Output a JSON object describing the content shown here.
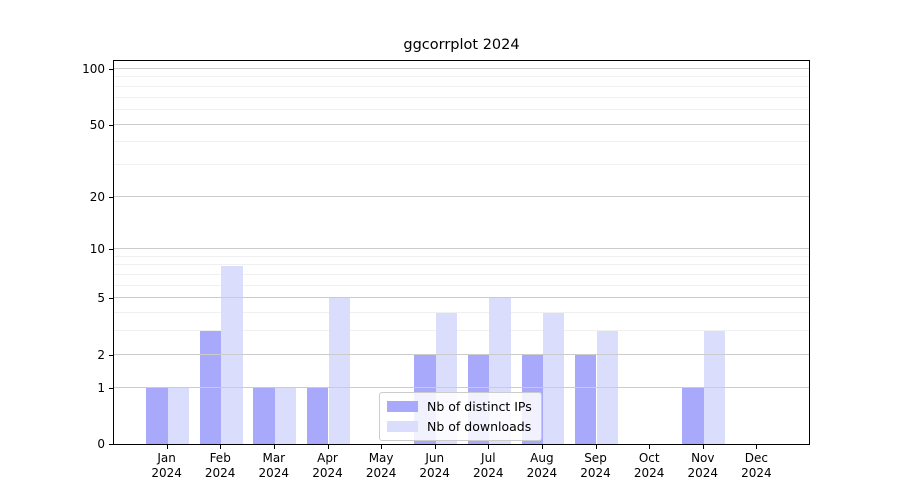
{
  "chart_data": {
    "type": "bar",
    "title": "ggcorrplot 2024",
    "categories": [
      "Jan 2024",
      "Feb 2024",
      "Mar 2024",
      "Apr 2024",
      "May 2024",
      "Jun 2024",
      "Jul 2024",
      "Aug 2024",
      "Sep 2024",
      "Oct 2024",
      "Nov 2024",
      "Dec 2024"
    ],
    "series": [
      {
        "name": "Nb of distinct IPs",
        "color": "#a8a9fa",
        "values": [
          1,
          3,
          1,
          1,
          0,
          2,
          2,
          2,
          2,
          0,
          1,
          0
        ]
      },
      {
        "name": "Nb of downloads",
        "color": "#dbddfc",
        "values": [
          1,
          8,
          1,
          5,
          0,
          4,
          5,
          4,
          3,
          0,
          3,
          0
        ]
      }
    ],
    "xlabel": "",
    "ylabel": "",
    "yscale": "log1p",
    "ylim": [
      0,
      113
    ],
    "y_major_ticks": [
      0,
      1,
      2,
      5,
      10,
      20,
      50,
      100
    ],
    "y_minor_ticks": [
      3,
      4,
      6,
      7,
      8,
      9,
      30,
      40,
      60,
      70,
      80,
      90
    ],
    "grid": "both",
    "legend_position": "lower center"
  },
  "colors": {
    "background": "#ffffff",
    "spine": "#000000",
    "grid_major": "#cccccc",
    "grid_minor": "#f0f0f0",
    "legend_border": "#cccccc"
  }
}
